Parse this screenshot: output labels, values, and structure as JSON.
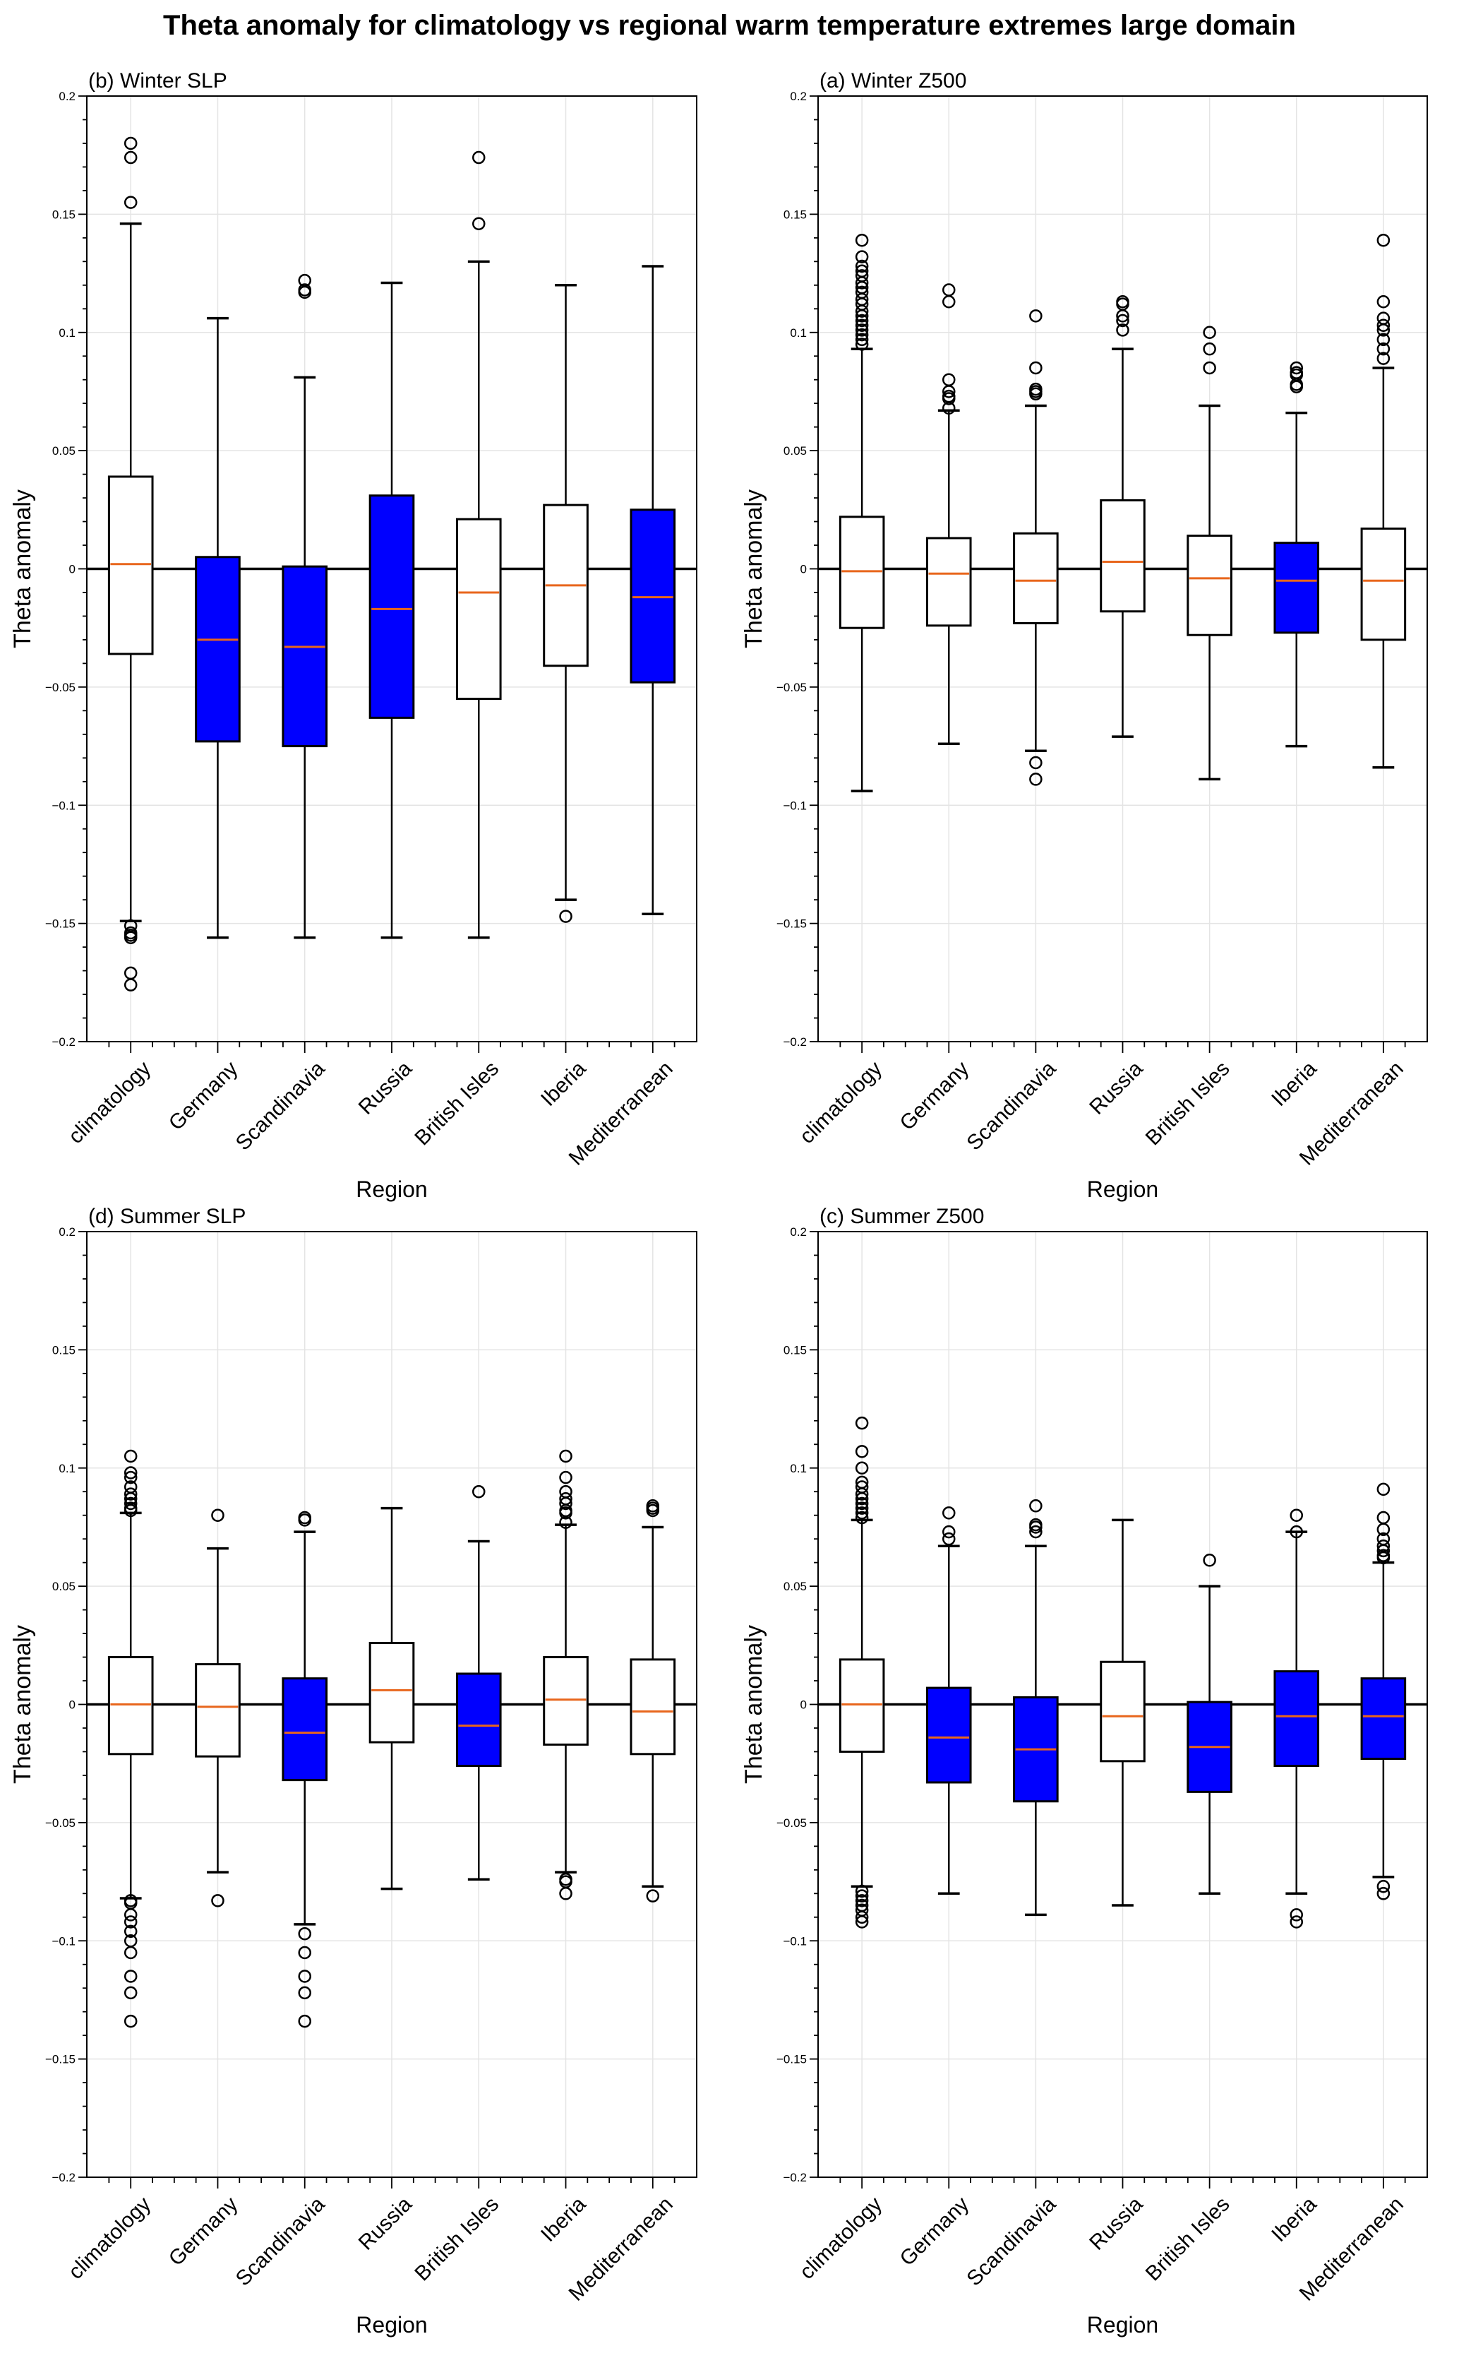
{
  "figure_title": "Theta anomaly for climatology vs regional warm temperature extremes large domain",
  "colors": {
    "significant_fill": "#0000ff",
    "normal_fill": "#ffffff",
    "median": "#e8661c",
    "grid": "#e4e4e4",
    "axis": "#000000"
  },
  "chart_data": [
    {
      "type": "box",
      "panel": "top-left",
      "title": "(b) Winter SLP",
      "xlabel": "Region",
      "ylabel": "Theta anomaly",
      "ylim": [
        -0.2,
        0.2
      ],
      "yticks": [
        -0.2,
        -0.15,
        -0.1,
        -0.05,
        0,
        0.05,
        0.1,
        0.15,
        0.2
      ],
      "ytick_labels": [
        "−0.2",
        "−0.15",
        "−0.1",
        "−0.05",
        "0",
        "0.05",
        "0.1",
        "0.15",
        "0.2"
      ],
      "grid": true,
      "categories": [
        "climatology",
        "Germany",
        "Scandinavia",
        "Russia",
        "British Isles",
        "Iberia",
        "Mediterranean"
      ],
      "boxes": [
        {
          "whislo": -0.149,
          "q1": -0.036,
          "med": 0.002,
          "q3": 0.039,
          "whishi": 0.146,
          "significant": false,
          "fliers": [
            0.18,
            0.174,
            0.155,
            -0.151,
            -0.154,
            -0.155,
            -0.156,
            -0.171,
            -0.176
          ]
        },
        {
          "whislo": -0.156,
          "q1": -0.073,
          "med": -0.03,
          "q3": 0.005,
          "whishi": 0.106,
          "significant": true,
          "fliers": []
        },
        {
          "whislo": -0.156,
          "q1": -0.075,
          "med": -0.033,
          "q3": 0.001,
          "whishi": 0.081,
          "significant": true,
          "fliers": [
            0.122,
            0.118,
            0.117
          ]
        },
        {
          "whislo": -0.156,
          "q1": -0.063,
          "med": -0.017,
          "q3": 0.031,
          "whishi": 0.121,
          "significant": true,
          "fliers": []
        },
        {
          "whislo": -0.156,
          "q1": -0.055,
          "med": -0.01,
          "q3": 0.021,
          "whishi": 0.13,
          "significant": false,
          "fliers": [
            0.174,
            0.146
          ]
        },
        {
          "whislo": -0.14,
          "q1": -0.041,
          "med": -0.007,
          "q3": 0.027,
          "whishi": 0.12,
          "significant": false,
          "fliers": [
            -0.147
          ]
        },
        {
          "whislo": -0.146,
          "q1": -0.048,
          "med": -0.012,
          "q3": 0.025,
          "whishi": 0.128,
          "significant": true,
          "fliers": []
        }
      ]
    },
    {
      "type": "box",
      "panel": "top-right",
      "title": "(a) Winter Z500",
      "xlabel": "Region",
      "ylabel": "Theta anomaly",
      "ylim": [
        -0.2,
        0.2
      ],
      "yticks": [
        -0.2,
        -0.15,
        -0.1,
        -0.05,
        0,
        0.05,
        0.1,
        0.15,
        0.2
      ],
      "ytick_labels": [
        "−0.2",
        "−0.15",
        "−0.1",
        "−0.05",
        "0",
        "0.05",
        "0.1",
        "0.15",
        "0.2"
      ],
      "grid": true,
      "categories": [
        "climatology",
        "Germany",
        "Scandinavia",
        "Russia",
        "British Isles",
        "Iberia",
        "Mediterranean"
      ],
      "boxes": [
        {
          "whislo": -0.094,
          "q1": -0.025,
          "med": -0.001,
          "q3": 0.022,
          "whishi": 0.093,
          "significant": false,
          "fliers": [
            0.139,
            0.132,
            0.128,
            0.126,
            0.124,
            0.121,
            0.119,
            0.117,
            0.114,
            0.112,
            0.109,
            0.107,
            0.105,
            0.103,
            0.101,
            0.099,
            0.097,
            0.095
          ]
        },
        {
          "whislo": -0.074,
          "q1": -0.024,
          "med": -0.002,
          "q3": 0.013,
          "whishi": 0.067,
          "significant": false,
          "fliers": [
            0.118,
            0.113,
            0.08,
            0.075,
            0.073,
            0.072,
            0.068
          ]
        },
        {
          "whislo": -0.077,
          "q1": -0.023,
          "med": -0.005,
          "q3": 0.015,
          "whishi": 0.069,
          "significant": false,
          "fliers": [
            0.107,
            0.085,
            0.076,
            0.075,
            0.074,
            -0.082,
            -0.089
          ]
        },
        {
          "whislo": -0.071,
          "q1": -0.018,
          "med": 0.003,
          "q3": 0.029,
          "whishi": 0.093,
          "significant": false,
          "fliers": [
            0.113,
            0.112,
            0.107,
            0.105,
            0.101
          ]
        },
        {
          "whislo": -0.089,
          "q1": -0.028,
          "med": -0.004,
          "q3": 0.014,
          "whishi": 0.069,
          "significant": false,
          "fliers": [
            0.1,
            0.093,
            0.085
          ]
        },
        {
          "whislo": -0.075,
          "q1": -0.027,
          "med": -0.005,
          "q3": 0.011,
          "whishi": 0.066,
          "significant": true,
          "fliers": [
            0.085,
            0.083,
            0.082,
            0.078,
            0.077
          ]
        },
        {
          "whislo": -0.084,
          "q1": -0.03,
          "med": -0.005,
          "q3": 0.017,
          "whishi": 0.085,
          "significant": false,
          "fliers": [
            0.139,
            0.113,
            0.106,
            0.103,
            0.101,
            0.097,
            0.093,
            0.089
          ]
        }
      ]
    },
    {
      "type": "box",
      "panel": "bottom-left",
      "title": "(d) Summer SLP",
      "xlabel": "Region",
      "ylabel": "Theta anomaly",
      "ylim": [
        -0.2,
        0.2
      ],
      "yticks": [
        -0.2,
        -0.15,
        -0.1,
        -0.05,
        0,
        0.05,
        0.1,
        0.15,
        0.2
      ],
      "ytick_labels": [
        "−0.2",
        "−0.15",
        "−0.1",
        "−0.05",
        "0",
        "0.05",
        "0.1",
        "0.15",
        "0.2"
      ],
      "grid": true,
      "categories": [
        "climatology",
        "Germany",
        "Scandinavia",
        "Russia",
        "British Isles",
        "Iberia",
        "Mediterranean"
      ],
      "boxes": [
        {
          "whislo": -0.082,
          "q1": -0.021,
          "med": 0.0,
          "q3": 0.02,
          "whishi": 0.081,
          "significant": false,
          "fliers": [
            0.105,
            0.098,
            0.096,
            0.092,
            0.089,
            0.087,
            0.085,
            0.083,
            0.082,
            -0.083,
            -0.084,
            -0.089,
            -0.092,
            -0.096,
            -0.1,
            -0.105,
            -0.115,
            -0.122,
            -0.134
          ]
        },
        {
          "whislo": -0.071,
          "q1": -0.022,
          "med": -0.001,
          "q3": 0.017,
          "whishi": 0.066,
          "significant": false,
          "fliers": [
            0.08,
            -0.083
          ]
        },
        {
          "whislo": -0.093,
          "q1": -0.032,
          "med": -0.012,
          "q3": 0.011,
          "whishi": 0.073,
          "significant": true,
          "fliers": [
            0.079,
            0.078,
            -0.097,
            -0.105,
            -0.115,
            -0.122,
            -0.134
          ]
        },
        {
          "whislo": -0.078,
          "q1": -0.016,
          "med": 0.006,
          "q3": 0.026,
          "whishi": 0.083,
          "significant": false,
          "fliers": []
        },
        {
          "whislo": -0.074,
          "q1": -0.026,
          "med": -0.009,
          "q3": 0.013,
          "whishi": 0.069,
          "significant": true,
          "fliers": [
            0.09
          ]
        },
        {
          "whislo": -0.071,
          "q1": -0.017,
          "med": 0.002,
          "q3": 0.02,
          "whishi": 0.076,
          "significant": false,
          "fliers": [
            0.105,
            0.096,
            0.09,
            0.087,
            0.085,
            0.082,
            0.081,
            0.077,
            -0.074,
            -0.075,
            -0.08
          ]
        },
        {
          "whislo": -0.077,
          "q1": -0.021,
          "med": -0.003,
          "q3": 0.019,
          "whishi": 0.075,
          "significant": false,
          "fliers": [
            0.084,
            0.083,
            0.082,
            -0.081
          ]
        }
      ]
    },
    {
      "type": "box",
      "panel": "bottom-right",
      "title": "(c) Summer Z500",
      "xlabel": "Region",
      "ylabel": "Theta anomaly",
      "ylim": [
        -0.2,
        0.2
      ],
      "yticks": [
        -0.2,
        -0.15,
        -0.1,
        -0.05,
        0,
        0.05,
        0.1,
        0.15,
        0.2
      ],
      "ytick_labels": [
        "−0.2",
        "−0.15",
        "−0.1",
        "−0.05",
        "0",
        "0.05",
        "0.1",
        "0.15",
        "0.2"
      ],
      "grid": true,
      "categories": [
        "climatology",
        "Germany",
        "Scandinavia",
        "Russia",
        "British Isles",
        "Iberia",
        "Mediterranean"
      ],
      "boxes": [
        {
          "whislo": -0.077,
          "q1": -0.02,
          "med": 0.0,
          "q3": 0.019,
          "whishi": 0.078,
          "significant": false,
          "fliers": [
            0.119,
            0.107,
            0.1,
            0.094,
            0.092,
            0.089,
            0.087,
            0.085,
            0.083,
            0.081,
            0.079,
            -0.079,
            -0.081,
            -0.083,
            -0.085,
            -0.087,
            -0.09,
            -0.092
          ]
        },
        {
          "whislo": -0.08,
          "q1": -0.033,
          "med": -0.014,
          "q3": 0.007,
          "whishi": 0.067,
          "significant": true,
          "fliers": [
            0.081,
            0.073,
            0.07
          ]
        },
        {
          "whislo": -0.089,
          "q1": -0.041,
          "med": -0.019,
          "q3": 0.003,
          "whishi": 0.067,
          "significant": true,
          "fliers": [
            0.084,
            0.076,
            0.075,
            0.073
          ]
        },
        {
          "whislo": -0.085,
          "q1": -0.024,
          "med": -0.005,
          "q3": 0.018,
          "whishi": 0.078,
          "significant": false,
          "fliers": []
        },
        {
          "whislo": -0.08,
          "q1": -0.037,
          "med": -0.018,
          "q3": 0.001,
          "whishi": 0.05,
          "significant": true,
          "fliers": [
            0.061
          ]
        },
        {
          "whislo": -0.08,
          "q1": -0.026,
          "med": -0.005,
          "q3": 0.014,
          "whishi": 0.073,
          "significant": true,
          "fliers": [
            0.08,
            0.073,
            -0.089,
            -0.092
          ]
        },
        {
          "whislo": -0.073,
          "q1": -0.023,
          "med": -0.005,
          "q3": 0.011,
          "whishi": 0.06,
          "significant": true,
          "fliers": [
            0.091,
            0.079,
            0.074,
            0.07,
            0.067,
            0.065,
            0.063,
            0.062,
            -0.077,
            -0.08
          ]
        }
      ]
    }
  ]
}
